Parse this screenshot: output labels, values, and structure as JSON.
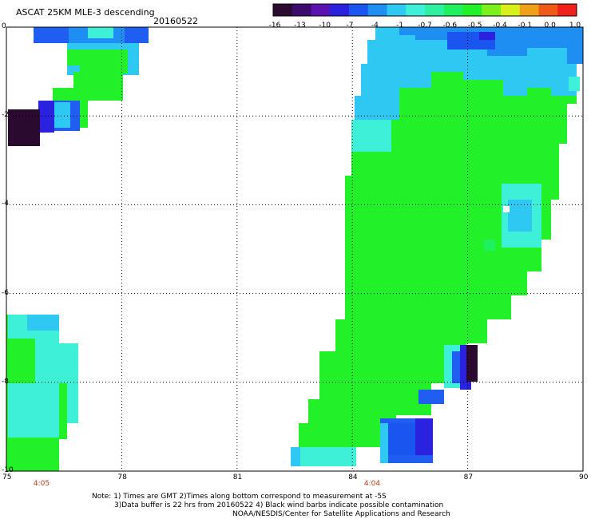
{
  "header": {
    "title": "ASCAT 25KM MLE-3 descending",
    "date": "20160522"
  },
  "colorbar": {
    "colors": [
      "#2a0a2e",
      "#3d0b6e",
      "#5a12b0",
      "#2b22e0",
      "#1a55f0",
      "#1f8ef2",
      "#2fc8f2",
      "#3ff0d8",
      "#2ef0a0",
      "#1ef060",
      "#22f028",
      "#7bf01a",
      "#d8f01a",
      "#f0a018",
      "#f05a18",
      "#f0201a"
    ],
    "labels": [
      "-16",
      "-13",
      "-10",
      "-7",
      "-4",
      "-1",
      "-0.7",
      "-0.6",
      "-0.5",
      "-0.4",
      "-0.1",
      "0.0",
      "1.0"
    ]
  },
  "axes": {
    "x_ticks": [
      "75",
      "78",
      "81",
      "84",
      "87",
      "90"
    ],
    "y_ticks": [
      "0",
      "-2",
      "-4",
      "-6",
      "-8",
      "-10"
    ]
  },
  "times": [
    "4:05",
    "4:04"
  ],
  "footer": {
    "line1": "Note: 1) Times are GMT 2)Times along bottom correspond to measurement at -5S",
    "line2": "3)Data buffer is 22 hrs from 20160522 4) Black wind barbs indicate possible contamination",
    "line3": "NOAA/NESDIS/Center for Satellite Applications and Research"
  }
}
